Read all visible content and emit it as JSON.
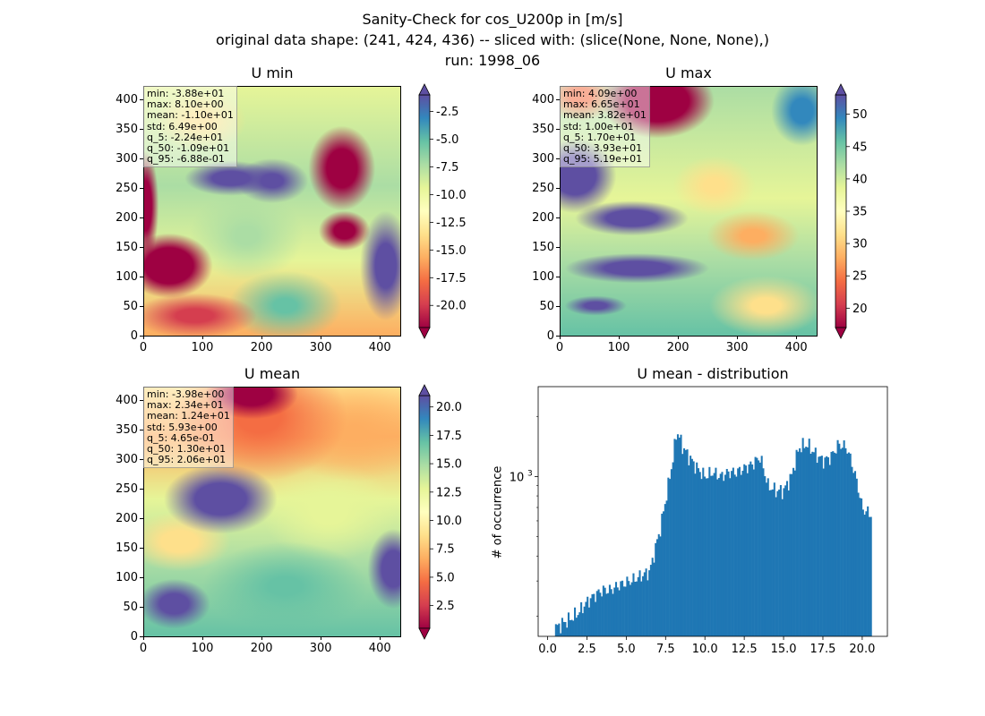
{
  "figure": {
    "suptitle_lines": [
      "Sanity-Check for cos_U200p in [m/s]",
      "original data shape: (241, 424, 436) -- sliced with: (slice(None, None, None),)",
      "run: 1998_06"
    ]
  },
  "colors": {
    "colormap": "Spectral",
    "histogram_bar": "#1f77b4"
  },
  "chart_data": [
    {
      "type": "heatmap",
      "title": "U min",
      "colormap": "Spectral",
      "xlim": [
        0,
        436
      ],
      "ylim": [
        0,
        424
      ],
      "x_ticks": [
        "0",
        "100",
        "200",
        "300",
        "400"
      ],
      "y_ticks": [
        "0",
        "50",
        "100",
        "150",
        "200",
        "250",
        "300",
        "350",
        "400"
      ],
      "colorbar": {
        "range": [
          -22,
          -1
        ],
        "ticks": [
          "-2.5",
          "-5.0",
          "-7.5",
          "-10.0",
          "-12.5",
          "-15.0",
          "-17.5",
          "-20.0"
        ],
        "extend": "both"
      },
      "stats": [
        "min: -3.88e+01",
        "max: 8.10e+00",
        "mean: -1.10e+01",
        "std: 6.49e+00",
        "q_5: -2.24e+01",
        "q_50: -1.09e+01",
        "q_95: -6.88e-01"
      ]
    },
    {
      "type": "heatmap",
      "title": "U max",
      "colormap": "Spectral",
      "xlim": [
        0,
        436
      ],
      "ylim": [
        0,
        424
      ],
      "x_ticks": [
        "0",
        "100",
        "200",
        "300",
        "400"
      ],
      "y_ticks": [
        "0",
        "50",
        "100",
        "150",
        "200",
        "250",
        "300",
        "350",
        "400"
      ],
      "colorbar": {
        "range": [
          17,
          53
        ],
        "ticks": [
          "50",
          "45",
          "40",
          "35",
          "30",
          "25",
          "20"
        ],
        "extend": "both"
      },
      "stats": [
        "min: 4.09e+00",
        "max: 6.65e+01",
        "mean: 3.82e+01",
        "std: 1.00e+01",
        "q_5: 1.70e+01",
        "q_50: 3.93e+01",
        "q_95: 5.19e+01"
      ]
    },
    {
      "type": "heatmap",
      "title": "U mean",
      "colormap": "Spectral",
      "xlim": [
        0,
        436
      ],
      "ylim": [
        0,
        424
      ],
      "x_ticks": [
        "0",
        "100",
        "200",
        "300",
        "400"
      ],
      "y_ticks": [
        "0",
        "50",
        "100",
        "150",
        "200",
        "250",
        "300",
        "350",
        "400"
      ],
      "colorbar": {
        "range": [
          0.5,
          21
        ],
        "ticks": [
          "20.0",
          "17.5",
          "15.0",
          "12.5",
          "10.0",
          "7.5",
          "5.0",
          "2.5"
        ],
        "extend": "both"
      },
      "stats": [
        "min: -3.98e+00",
        "max: 2.34e+01",
        "mean: 1.24e+01",
        "std: 5.93e+00",
        "q_5: 4.65e-01",
        "q_50: 1.30e+01",
        "q_95: 2.06e+01"
      ]
    },
    {
      "type": "bar",
      "title": "U mean - distribution",
      "ylabel": "# of occurrence",
      "yscale": "log",
      "xlim": [
        -0.6,
        21.6
      ],
      "ylim_log10": [
        2.2,
        3.45
      ],
      "x_ticks": [
        "0.0",
        "2.5",
        "5.0",
        "7.5",
        "10.0",
        "12.5",
        "15.0",
        "17.5",
        "20.0"
      ],
      "y_tick_label": "10",
      "y_tick_exp": "3",
      "bin_range": [
        0.47,
        20.6
      ],
      "approx_counts_profile": [
        [
          0.5,
          175
        ],
        [
          1.0,
          185
        ],
        [
          1.5,
          195
        ],
        [
          2.0,
          210
        ],
        [
          2.5,
          235
        ],
        [
          3.0,
          255
        ],
        [
          3.5,
          270
        ],
        [
          4.0,
          270
        ],
        [
          4.5,
          285
        ],
        [
          5.0,
          295
        ],
        [
          5.5,
          305
        ],
        [
          6.0,
          320
        ],
        [
          6.5,
          335
        ],
        [
          6.8,
          420
        ],
        [
          7.2,
          560
        ],
        [
          7.6,
          830
        ],
        [
          8.0,
          1250
        ],
        [
          8.2,
          1700
        ],
        [
          8.6,
          1400
        ],
        [
          9.0,
          1250
        ],
        [
          9.5,
          1100
        ],
        [
          10.0,
          1000
        ],
        [
          10.5,
          1050
        ],
        [
          11.0,
          1000
        ],
        [
          11.5,
          1050
        ],
        [
          12.0,
          1050
        ],
        [
          12.5,
          1100
        ],
        [
          13.0,
          1150
        ],
        [
          13.5,
          1250
        ],
        [
          14.0,
          900
        ],
        [
          14.5,
          850
        ],
        [
          15.0,
          850
        ],
        [
          15.5,
          1000
        ],
        [
          16.0,
          1400
        ],
        [
          16.5,
          1450
        ],
        [
          17.0,
          1300
        ],
        [
          17.5,
          1200
        ],
        [
          18.0,
          1250
        ],
        [
          18.5,
          1450
        ],
        [
          19.0,
          1400
        ],
        [
          19.5,
          1050
        ],
        [
          20.0,
          690
        ],
        [
          20.5,
          650
        ]
      ]
    }
  ]
}
